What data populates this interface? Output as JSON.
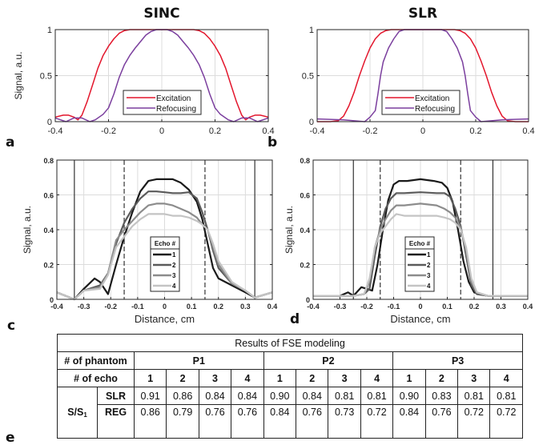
{
  "panel_labels": [
    "a",
    "b",
    "c",
    "d",
    "e"
  ],
  "chart_data": [
    {
      "id": "a",
      "type": "line",
      "title": "SINC",
      "xlabel": "",
      "ylabel": "Signal, a.u.",
      "xlim": [
        -0.4,
        0.4
      ],
      "ylim": [
        0,
        1
      ],
      "xticks": [
        "-0.4",
        "-0.2",
        "0",
        "0.2",
        "0.4"
      ],
      "yticks": [
        "0",
        "0.5",
        "1"
      ],
      "grid": true,
      "legend": "bottom-center",
      "series": [
        {
          "name": "Excitation",
          "color": "#e3162c",
          "x": [
            -0.4,
            -0.37,
            -0.35,
            -0.33,
            -0.315,
            -0.3,
            -0.28,
            -0.26,
            -0.24,
            -0.22,
            -0.2,
            -0.18,
            -0.16,
            -0.14,
            -0.12,
            -0.1,
            -0.05,
            0,
            0.05,
            0.1,
            0.12,
            0.14,
            0.16,
            0.18,
            0.2,
            0.22,
            0.24,
            0.26,
            0.28,
            0.3,
            0.315,
            0.33,
            0.35,
            0.37,
            0.4
          ],
          "y": [
            0.05,
            0.07,
            0.07,
            0.05,
            0.02,
            0.07,
            0.22,
            0.4,
            0.58,
            0.72,
            0.82,
            0.9,
            0.96,
            0.99,
            1.0,
            1.0,
            1.0,
            1.0,
            1.0,
            1.0,
            1.0,
            0.99,
            0.96,
            0.9,
            0.82,
            0.72,
            0.58,
            0.4,
            0.22,
            0.07,
            0.02,
            0.05,
            0.07,
            0.07,
            0.05
          ]
        },
        {
          "name": "Refocusing",
          "color": "#7b3f9e",
          "x": [
            -0.4,
            -0.36,
            -0.33,
            -0.3,
            -0.27,
            -0.25,
            -0.22,
            -0.2,
            -0.18,
            -0.16,
            -0.14,
            -0.12,
            -0.1,
            -0.08,
            -0.06,
            -0.04,
            -0.02,
            0,
            0.02,
            0.04,
            0.06,
            0.08,
            0.1,
            0.12,
            0.14,
            0.16,
            0.18,
            0.2,
            0.22,
            0.25,
            0.27,
            0.3,
            0.33,
            0.36,
            0.4
          ],
          "y": [
            0.04,
            0.0,
            0.04,
            0.04,
            0.0,
            0.02,
            0.08,
            0.15,
            0.3,
            0.48,
            0.62,
            0.72,
            0.8,
            0.87,
            0.94,
            0.98,
            1.0,
            1.0,
            1.0,
            0.98,
            0.94,
            0.87,
            0.8,
            0.72,
            0.62,
            0.48,
            0.3,
            0.15,
            0.08,
            0.02,
            0.0,
            0.04,
            0.04,
            0.0,
            0.04
          ]
        }
      ]
    },
    {
      "id": "b",
      "type": "line",
      "title": "SLR",
      "xlabel": "",
      "ylabel": "",
      "xlim": [
        -0.4,
        0.4
      ],
      "ylim": [
        0,
        1
      ],
      "xticks": [
        "-0.4",
        "-0.2",
        "0",
        "0.2",
        "0.4"
      ],
      "yticks": [
        "0",
        "0.5",
        "1"
      ],
      "grid": true,
      "legend": "bottom-center",
      "series": [
        {
          "name": "Excitation",
          "color": "#e3162c",
          "x": [
            -0.4,
            -0.35,
            -0.32,
            -0.3,
            -0.28,
            -0.26,
            -0.24,
            -0.22,
            -0.2,
            -0.18,
            -0.16,
            -0.14,
            -0.12,
            -0.1,
            0,
            0.1,
            0.12,
            0.14,
            0.16,
            0.18,
            0.2,
            0.22,
            0.24,
            0.26,
            0.28,
            0.3,
            0.32,
            0.35,
            0.4
          ],
          "y": [
            0.0,
            0.0,
            0.01,
            0.06,
            0.17,
            0.32,
            0.5,
            0.66,
            0.8,
            0.9,
            0.96,
            0.99,
            1.0,
            1.0,
            1.0,
            1.0,
            1.0,
            0.99,
            0.96,
            0.9,
            0.8,
            0.66,
            0.5,
            0.32,
            0.17,
            0.06,
            0.01,
            0.0,
            0.0
          ]
        },
        {
          "name": "Refocusing",
          "color": "#7b3f9e",
          "x": [
            -0.4,
            -0.3,
            -0.22,
            -0.2,
            -0.18,
            -0.17,
            -0.16,
            -0.15,
            -0.13,
            -0.11,
            -0.09,
            -0.07,
            0,
            0.07,
            0.09,
            0.11,
            0.13,
            0.15,
            0.16,
            0.17,
            0.18,
            0.2,
            0.22,
            0.3,
            0.4
          ],
          "y": [
            0.03,
            0.02,
            0.0,
            0.05,
            0.12,
            0.3,
            0.5,
            0.65,
            0.8,
            0.9,
            0.98,
            1.0,
            1.0,
            1.0,
            0.98,
            0.9,
            0.8,
            0.65,
            0.5,
            0.3,
            0.12,
            0.05,
            0.0,
            0.02,
            0.03
          ]
        }
      ]
    },
    {
      "id": "c",
      "type": "line",
      "title": "",
      "xlabel": "Distance, cm",
      "ylabel": "Signal, a.u.",
      "xlim": [
        -0.4,
        0.4
      ],
      "ylim": [
        0,
        0.8
      ],
      "xticks": [
        "-0.4",
        "-0.3",
        "-0.2",
        "-0.1",
        "0",
        "0.1",
        "0.2",
        "0.3",
        "0.4"
      ],
      "yticks": [
        "0",
        "0.2",
        "0.4",
        "0.6",
        "0.8"
      ],
      "grid": true,
      "legend": "bottom-center",
      "legend_title": "Echo #",
      "vlines_solid": [
        -0.335,
        0.335
      ],
      "vlines_dashed": [
        -0.15,
        0.15
      ],
      "series": [
        {
          "name": "1",
          "color": "#1a1a1a",
          "x": [
            -0.4,
            -0.335,
            -0.3,
            -0.26,
            -0.24,
            -0.21,
            -0.18,
            -0.15,
            -0.12,
            -0.09,
            -0.06,
            -0.03,
            0,
            0.03,
            0.06,
            0.09,
            0.12,
            0.14,
            0.16,
            0.18,
            0.2,
            0.25,
            0.3,
            0.335,
            0.4
          ],
          "y": [
            0.04,
            0.0,
            0.06,
            0.12,
            0.1,
            0.03,
            0.2,
            0.36,
            0.5,
            0.62,
            0.68,
            0.69,
            0.69,
            0.69,
            0.67,
            0.63,
            0.56,
            0.46,
            0.32,
            0.18,
            0.12,
            0.08,
            0.04,
            0.01,
            0.04
          ]
        },
        {
          "name": "2",
          "color": "#5a5a5a",
          "x": [
            -0.4,
            -0.335,
            -0.3,
            -0.24,
            -0.21,
            -0.18,
            -0.15,
            -0.12,
            -0.09,
            -0.06,
            -0.03,
            0,
            0.03,
            0.06,
            0.09,
            0.12,
            0.14,
            0.16,
            0.18,
            0.2,
            0.25,
            0.3,
            0.335,
            0.4
          ],
          "y": [
            0.04,
            0.0,
            0.05,
            0.08,
            0.15,
            0.32,
            0.44,
            0.52,
            0.58,
            0.62,
            0.62,
            0.615,
            0.61,
            0.61,
            0.615,
            0.58,
            0.5,
            0.4,
            0.28,
            0.18,
            0.09,
            0.05,
            0.01,
            0.04
          ]
        },
        {
          "name": "3",
          "color": "#8c8c8c",
          "x": [
            -0.4,
            -0.335,
            -0.3,
            -0.24,
            -0.21,
            -0.18,
            -0.15,
            -0.12,
            -0.09,
            -0.06,
            -0.03,
            0,
            0.03,
            0.06,
            0.09,
            0.12,
            0.14,
            0.16,
            0.18,
            0.2,
            0.25,
            0.3,
            0.335,
            0.4
          ],
          "y": [
            0.04,
            0.0,
            0.05,
            0.07,
            0.15,
            0.34,
            0.4,
            0.45,
            0.5,
            0.54,
            0.55,
            0.55,
            0.54,
            0.52,
            0.5,
            0.47,
            0.43,
            0.4,
            0.3,
            0.2,
            0.09,
            0.05,
            0.01,
            0.04
          ]
        },
        {
          "name": "4",
          "color": "#c4c4c4",
          "x": [
            -0.4,
            -0.335,
            -0.3,
            -0.24,
            -0.21,
            -0.18,
            -0.15,
            -0.12,
            -0.09,
            -0.06,
            -0.03,
            0,
            0.03,
            0.06,
            0.09,
            0.12,
            0.14,
            0.16,
            0.18,
            0.2,
            0.25,
            0.3,
            0.335,
            0.4
          ],
          "y": [
            0.04,
            0.0,
            0.05,
            0.06,
            0.14,
            0.3,
            0.36,
            0.42,
            0.46,
            0.49,
            0.49,
            0.49,
            0.48,
            0.48,
            0.47,
            0.45,
            0.43,
            0.4,
            0.32,
            0.22,
            0.1,
            0.05,
            0.01,
            0.04
          ]
        }
      ]
    },
    {
      "id": "d",
      "type": "line",
      "title": "",
      "xlabel": "Distance, cm",
      "ylabel": "Signal, a.u.",
      "xlim": [
        -0.4,
        0.4
      ],
      "ylim": [
        0,
        0.8
      ],
      "xticks": [
        "-0.4",
        "-0.3",
        "-0.2",
        "-0.1",
        "0",
        "0.1",
        "0.2",
        "0.3",
        "0.4"
      ],
      "yticks": [
        "0",
        "0.2",
        "0.4",
        "0.6",
        "0.8"
      ],
      "grid": true,
      "legend": "bottom-center",
      "legend_title": "Echo #",
      "vlines_solid": [
        -0.25,
        0.27
      ],
      "vlines_dashed": [
        -0.15,
        0.15
      ],
      "series": [
        {
          "name": "1",
          "color": "#1a1a1a",
          "x": [
            -0.4,
            -0.35,
            -0.3,
            -0.27,
            -0.25,
            -0.22,
            -0.2,
            -0.18,
            -0.16,
            -0.14,
            -0.12,
            -0.1,
            -0.08,
            -0.05,
            0,
            0.05,
            0.08,
            0.1,
            0.12,
            0.14,
            0.16,
            0.18,
            0.2,
            0.22,
            0.25,
            0.3,
            0.35,
            0.4
          ],
          "y": [
            0.02,
            0.02,
            0.02,
            0.04,
            0.02,
            0.07,
            0.06,
            0.05,
            0.2,
            0.4,
            0.57,
            0.66,
            0.68,
            0.68,
            0.69,
            0.68,
            0.67,
            0.64,
            0.56,
            0.4,
            0.22,
            0.1,
            0.04,
            0.03,
            0.02,
            0.02,
            0.02,
            0.02
          ]
        },
        {
          "name": "2",
          "color": "#5a5a5a",
          "x": [
            -0.4,
            -0.3,
            -0.25,
            -0.21,
            -0.19,
            -0.17,
            -0.15,
            -0.13,
            -0.11,
            -0.09,
            -0.06,
            0,
            0.06,
            0.09,
            0.11,
            0.13,
            0.15,
            0.17,
            0.19,
            0.21,
            0.25,
            0.3,
            0.4
          ],
          "y": [
            0.02,
            0.02,
            0.02,
            0.03,
            0.06,
            0.25,
            0.42,
            0.52,
            0.58,
            0.61,
            0.61,
            0.615,
            0.61,
            0.61,
            0.59,
            0.52,
            0.42,
            0.25,
            0.08,
            0.03,
            0.02,
            0.02,
            0.02
          ]
        },
        {
          "name": "3",
          "color": "#8c8c8c",
          "x": [
            -0.4,
            -0.3,
            -0.25,
            -0.21,
            -0.19,
            -0.17,
            -0.15,
            -0.13,
            -0.11,
            -0.09,
            -0.06,
            0,
            0.06,
            0.09,
            0.11,
            0.13,
            0.15,
            0.17,
            0.19,
            0.21,
            0.25,
            0.3,
            0.4
          ],
          "y": [
            0.02,
            0.02,
            0.02,
            0.03,
            0.1,
            0.3,
            0.4,
            0.46,
            0.51,
            0.54,
            0.54,
            0.55,
            0.54,
            0.52,
            0.5,
            0.47,
            0.41,
            0.28,
            0.1,
            0.04,
            0.02,
            0.02,
            0.02
          ]
        },
        {
          "name": "4",
          "color": "#c4c4c4",
          "x": [
            -0.4,
            -0.3,
            -0.25,
            -0.21,
            -0.19,
            -0.17,
            -0.15,
            -0.13,
            -0.11,
            -0.09,
            -0.06,
            0,
            0.06,
            0.09,
            0.11,
            0.13,
            0.15,
            0.17,
            0.19,
            0.21,
            0.25,
            0.3,
            0.4
          ],
          "y": [
            0.02,
            0.02,
            0.02,
            0.03,
            0.12,
            0.3,
            0.38,
            0.42,
            0.46,
            0.49,
            0.48,
            0.48,
            0.48,
            0.47,
            0.46,
            0.44,
            0.4,
            0.3,
            0.12,
            0.04,
            0.02,
            0.02,
            0.02
          ]
        }
      ]
    }
  ],
  "table": {
    "title": "Results of FSE modeling",
    "phantom_label": "# of phantom",
    "phantoms": [
      "P1",
      "P2",
      "P3"
    ],
    "echo_label": "# of echo",
    "echoes": [
      "1",
      "2",
      "3",
      "4"
    ],
    "ratio_label_main": "S/S",
    "ratio_label_sub": "1",
    "rows": [
      {
        "label": "SLR",
        "values": [
          "0.91",
          "0.86",
          "0.84",
          "0.84",
          "0.90",
          "0.84",
          "0.81",
          "0.81",
          "0.90",
          "0.83",
          "0.81",
          "0.81"
        ]
      },
      {
        "label": "REG",
        "values": [
          "0.86",
          "0.79",
          "0.76",
          "0.76",
          "0.84",
          "0.76",
          "0.73",
          "0.72",
          "0.84",
          "0.76",
          "0.72",
          "0.72"
        ]
      }
    ]
  }
}
